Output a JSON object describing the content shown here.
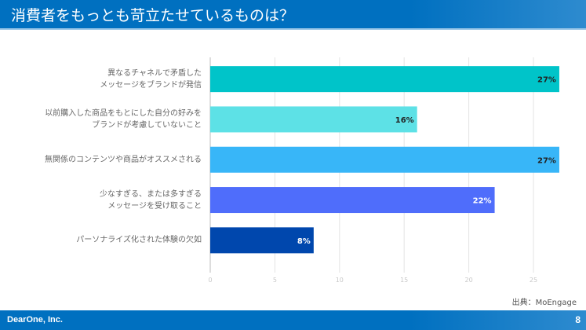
{
  "header": {
    "title": "消費者をもっとも苛立たせているものは？"
  },
  "footer": {
    "company": "DearOne, Inc.",
    "page": "8"
  },
  "source": "出典：MoEngage",
  "chart_data": {
    "type": "bar",
    "orientation": "horizontal",
    "categories": [
      "異なるチャネルで矛盾した\nメッセージをブランドが発信",
      "以前購入した商品をもとにした自分の好みを\nブランドが考慮していないこと",
      "無関係のコンテンツや商品がオススメされる",
      "少なすぎる、または多すぎる\nメッセージを受け取ること",
      "パーソナライズ化された体験の欠如"
    ],
    "values": [
      27,
      16,
      27,
      22,
      8
    ],
    "data_labels": [
      "27%",
      "16%",
      "27%",
      "22%",
      "8%"
    ],
    "colors": [
      "#00c4c9",
      "#5de1e6",
      "#38b6f8",
      "#4f6dfb",
      "#0047ad"
    ],
    "xticks": [
      0,
      5,
      10,
      15,
      20,
      25
    ],
    "xlim": [
      0,
      28
    ],
    "grid": true
  }
}
